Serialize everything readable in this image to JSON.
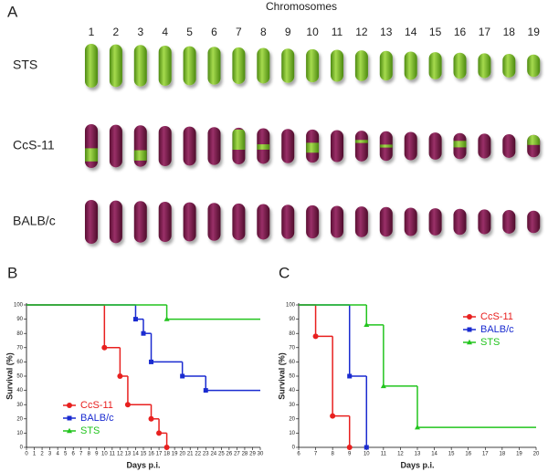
{
  "panel_a": {
    "label": "A",
    "title": "Chromosomes",
    "chromosomes": [
      "1",
      "2",
      "3",
      "4",
      "5",
      "6",
      "7",
      "8",
      "9",
      "10",
      "11",
      "12",
      "13",
      "14",
      "15",
      "16",
      "17",
      "18",
      "19"
    ],
    "rows": [
      "STS",
      "CcS-11",
      "BALB/c"
    ]
  },
  "chart_data": [
    {
      "type": "step",
      "label": "B",
      "xlabel": "Days p.i.",
      "ylabel": "Survival (%)",
      "xlim": [
        0,
        30
      ],
      "xticks": [
        0,
        1,
        2,
        3,
        4,
        5,
        6,
        7,
        8,
        9,
        10,
        11,
        12,
        13,
        14,
        15,
        16,
        17,
        18,
        19,
        20,
        21,
        22,
        23,
        24,
        25,
        26,
        27,
        28,
        29,
        30
      ],
      "ylim": [
        0,
        100
      ],
      "yticks": [
        0,
        10,
        20,
        30,
        40,
        50,
        60,
        70,
        80,
        90,
        100
      ],
      "legend": "lower left",
      "series": [
        {
          "name": "CcS-11",
          "color": "#e8201f",
          "marker": "circle",
          "x": [
            0,
            10,
            12,
            13,
            16,
            17,
            18
          ],
          "values": [
            100,
            70,
            50,
            30,
            20,
            10,
            0
          ]
        },
        {
          "name": "BALB/c",
          "color": "#1a2bd0",
          "marker": "square",
          "x": [
            0,
            14,
            15,
            16,
            20,
            23,
            30
          ],
          "values": [
            100,
            90,
            80,
            60,
            50,
            40,
            40
          ]
        },
        {
          "name": "STS",
          "color": "#22c41e",
          "marker": "triangle",
          "x": [
            0,
            18,
            30
          ],
          "values": [
            100,
            90,
            90
          ]
        }
      ]
    },
    {
      "type": "step",
      "label": "C",
      "xlabel": "Days p.i.",
      "ylabel": "Survival (%)",
      "xlim": [
        6,
        20
      ],
      "xticks": [
        6,
        7,
        8,
        9,
        10,
        11,
        12,
        13,
        14,
        15,
        16,
        17,
        18,
        19,
        20
      ],
      "ylim": [
        0,
        100
      ],
      "yticks": [
        0,
        10,
        20,
        30,
        40,
        50,
        60,
        70,
        80,
        90,
        100
      ],
      "legend": "upper right",
      "series": [
        {
          "name": "CcS-11",
          "color": "#e8201f",
          "marker": "circle",
          "x": [
            6,
            7,
            8,
            9
          ],
          "values": [
            100,
            78,
            22,
            0
          ]
        },
        {
          "name": "BALB/c",
          "color": "#1a2bd0",
          "marker": "square",
          "x": [
            6,
            9,
            10
          ],
          "values": [
            100,
            50,
            0
          ]
        },
        {
          "name": "STS",
          "color": "#22c41e",
          "marker": "triangle",
          "x": [
            6,
            10,
            11,
            13,
            20
          ],
          "values": [
            100,
            86,
            43,
            14,
            14
          ]
        }
      ]
    }
  ]
}
